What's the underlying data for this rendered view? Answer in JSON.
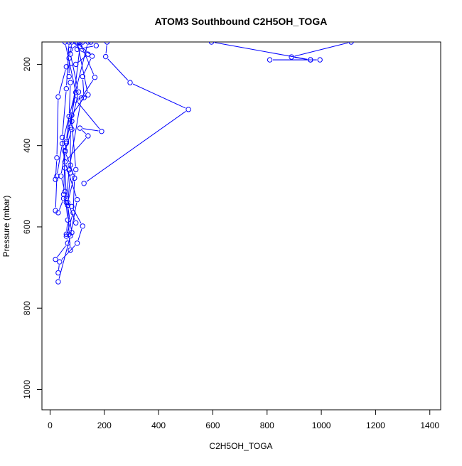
{
  "chart_data": {
    "type": "line",
    "title": "ATOM3 Southbound C2H5OH_TOGA",
    "xlabel": "C2H5OH_TOGA",
    "ylabel": "Pressure (mbar)",
    "xlim": [
      -30,
      1440
    ],
    "ylim": [
      1050,
      145
    ],
    "y_axis_reversed": true,
    "x_ticks": [
      0,
      200,
      400,
      600,
      800,
      1000,
      1200,
      1400
    ],
    "y_ticks": [
      200,
      400,
      600,
      800,
      1000
    ],
    "grid": false,
    "legend": "none",
    "series_color": "#0000ff",
    "marker": "open-circle",
    "series": [
      {
        "values": [
          {
            "x": 1110,
            "y": 145
          },
          {
            "x": 890,
            "y": 182
          },
          {
            "x": 960,
            "y": 189
          },
          {
            "x": 995,
            "y": 189
          },
          {
            "x": 810,
            "y": 189
          },
          {
            "x": 960,
            "y": 189
          },
          {
            "x": 595,
            "y": 145
          }
        ]
      },
      {
        "values": [
          {
            "x": 210,
            "y": 145
          },
          {
            "x": 205,
            "y": 181
          },
          {
            "x": 295,
            "y": 245
          },
          {
            "x": 510,
            "y": 311
          },
          {
            "x": 125,
            "y": 493
          }
        ]
      },
      {
        "values": [
          {
            "x": 150,
            "y": 145
          },
          {
            "x": 170,
            "y": 154
          },
          {
            "x": 100,
            "y": 163
          },
          {
            "x": 140,
            "y": 175
          },
          {
            "x": 95,
            "y": 200
          },
          {
            "x": 60,
            "y": 206
          },
          {
            "x": 30,
            "y": 280
          },
          {
            "x": 25,
            "y": 430
          },
          {
            "x": 20,
            "y": 483
          }
        ]
      },
      {
        "values": [
          {
            "x": 120,
            "y": 145
          },
          {
            "x": 75,
            "y": 163
          },
          {
            "x": 70,
            "y": 185
          },
          {
            "x": 70,
            "y": 230
          },
          {
            "x": 75,
            "y": 245
          },
          {
            "x": 70,
            "y": 328
          },
          {
            "x": 60,
            "y": 390
          },
          {
            "x": 55,
            "y": 412
          },
          {
            "x": 50,
            "y": 520
          },
          {
            "x": 50,
            "y": 530
          },
          {
            "x": 30,
            "y": 565
          }
        ]
      },
      {
        "values": [
          {
            "x": 95,
            "y": 145
          },
          {
            "x": 155,
            "y": 180
          },
          {
            "x": 120,
            "y": 230
          },
          {
            "x": 125,
            "y": 282
          },
          {
            "x": 80,
            "y": 325
          },
          {
            "x": 80,
            "y": 360
          },
          {
            "x": 55,
            "y": 415
          },
          {
            "x": 75,
            "y": 448
          },
          {
            "x": 90,
            "y": 480
          },
          {
            "x": 85,
            "y": 565
          },
          {
            "x": 60,
            "y": 623
          },
          {
            "x": 65,
            "y": 640
          },
          {
            "x": 20,
            "y": 680
          }
        ]
      },
      {
        "values": [
          {
            "x": 110,
            "y": 145
          },
          {
            "x": 165,
            "y": 232
          },
          {
            "x": 115,
            "y": 283
          },
          {
            "x": 70,
            "y": 460
          },
          {
            "x": 60,
            "y": 540
          },
          {
            "x": 80,
            "y": 550
          },
          {
            "x": 120,
            "y": 598
          },
          {
            "x": 100,
            "y": 640
          },
          {
            "x": 35,
            "y": 686
          },
          {
            "x": 30,
            "y": 713
          }
        ]
      },
      {
        "values": [
          {
            "x": 100,
            "y": 145
          },
          {
            "x": 140,
            "y": 275
          },
          {
            "x": 95,
            "y": 288
          },
          {
            "x": 190,
            "y": 365
          },
          {
            "x": 110,
            "y": 357
          },
          {
            "x": 140,
            "y": 376
          },
          {
            "x": 55,
            "y": 440
          },
          {
            "x": 100,
            "y": 533
          },
          {
            "x": 75,
            "y": 622
          },
          {
            "x": 30,
            "y": 735
          }
        ]
      },
      {
        "values": [
          {
            "x": 80,
            "y": 145
          },
          {
            "x": 75,
            "y": 175
          },
          {
            "x": 105,
            "y": 268
          },
          {
            "x": 80,
            "y": 340
          },
          {
            "x": 95,
            "y": 459
          },
          {
            "x": 65,
            "y": 540
          },
          {
            "x": 70,
            "y": 618
          },
          {
            "x": 75,
            "y": 657
          }
        ]
      },
      {
        "values": [
          {
            "x": 55,
            "y": 145
          },
          {
            "x": 95,
            "y": 269
          },
          {
            "x": 60,
            "y": 394
          },
          {
            "x": 40,
            "y": 475
          },
          {
            "x": 55,
            "y": 513
          },
          {
            "x": 65,
            "y": 583
          },
          {
            "x": 60,
            "y": 618
          }
        ]
      },
      {
        "values": [
          {
            "x": 110,
            "y": 157
          },
          {
            "x": 75,
            "y": 355
          },
          {
            "x": 75,
            "y": 467
          },
          {
            "x": 65,
            "y": 547
          },
          {
            "x": 80,
            "y": 614
          }
        ]
      },
      {
        "values": [
          {
            "x": 140,
            "y": 145
          },
          {
            "x": 45,
            "y": 395
          },
          {
            "x": 25,
            "y": 475
          },
          {
            "x": 20,
            "y": 560
          }
        ]
      },
      {
        "values": [
          {
            "x": 70,
            "y": 145
          },
          {
            "x": 60,
            "y": 260
          },
          {
            "x": 45,
            "y": 380
          },
          {
            "x": 55,
            "y": 455
          },
          {
            "x": 60,
            "y": 530
          },
          {
            "x": 95,
            "y": 590
          }
        ]
      }
    ]
  }
}
